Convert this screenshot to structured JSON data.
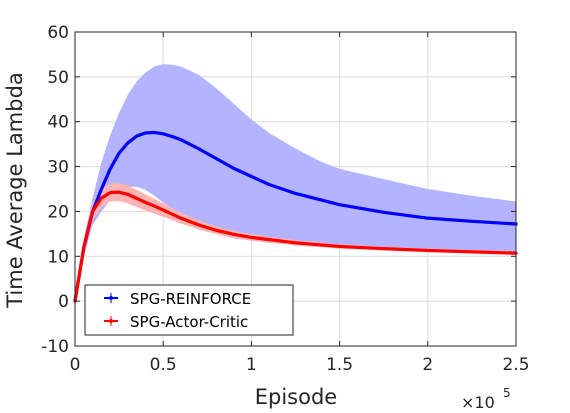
{
  "chart_data": {
    "type": "line",
    "xlabel": "Episode",
    "ylabel": "Time Average Lambda",
    "xlim": [
      0,
      250000
    ],
    "ylim": [
      -10,
      60
    ],
    "x_ticks": [
      0,
      50000,
      100000,
      150000,
      200000,
      250000
    ],
    "x_tick_labels": [
      "0",
      "0.5",
      "1",
      "1.5",
      "2",
      "2.5"
    ],
    "y_ticks": [
      -10,
      0,
      10,
      20,
      30,
      40,
      50,
      60
    ],
    "x_exponent": {
      "base": "×10",
      "power": "5"
    },
    "grid": true,
    "legend_position": "bottom-left",
    "series": [
      {
        "name": "SPG-REINFORCE",
        "color": "#0000ff",
        "band_color": "#b3b3ff",
        "x": [
          0,
          5000,
          10000,
          15000,
          20000,
          25000,
          30000,
          35000,
          40000,
          45000,
          50000,
          55000,
          60000,
          70000,
          80000,
          90000,
          100000,
          110000,
          125000,
          140000,
          150000,
          175000,
          200000,
          225000,
          250000
        ],
        "mean": [
          0,
          12,
          20,
          25,
          29.5,
          33,
          35.3,
          36.8,
          37.5,
          37.6,
          37.3,
          36.7,
          36,
          34,
          31.8,
          29.6,
          27.8,
          26,
          24,
          22.5,
          21.5,
          19.8,
          18.5,
          17.8,
          17.2
        ],
        "upper": [
          0,
          14,
          23,
          31,
          37,
          42,
          46,
          49,
          51,
          52.3,
          52.8,
          52.7,
          52.3,
          50.5,
          47.5,
          44,
          40.5,
          37.5,
          34,
          31,
          29.5,
          27.2,
          25,
          23.5,
          22.2
        ],
        "lower": [
          0,
          10,
          17,
          20,
          22.5,
          24.5,
          25.5,
          25.5,
          24.8,
          23.5,
          22,
          20.5,
          19,
          16.5,
          15,
          14,
          13.5,
          13,
          12.5,
          12,
          12,
          11.5,
          11.2,
          11,
          10.8
        ]
      },
      {
        "name": "SPG-Actor-Critic",
        "color": "#ff0000",
        "band_color": "#ffb3b3",
        "x": [
          0,
          5000,
          10000,
          15000,
          20000,
          25000,
          30000,
          35000,
          40000,
          45000,
          50000,
          60000,
          70000,
          80000,
          90000,
          100000,
          125000,
          150000,
          175000,
          200000,
          225000,
          250000
        ],
        "mean": [
          0,
          12,
          20,
          23,
          24.2,
          24.3,
          23.8,
          22.9,
          22,
          21.2,
          20.3,
          18.5,
          17,
          15.8,
          14.9,
          14.2,
          13,
          12.2,
          11.7,
          11.3,
          11,
          10.7
        ],
        "upper": [
          0,
          13,
          22,
          25.2,
          26.2,
          26.3,
          25.8,
          24.8,
          23.8,
          22.8,
          21.8,
          19.7,
          18,
          16.7,
          15.7,
          14.9,
          13.6,
          12.7,
          12.1,
          11.7,
          11.4,
          11.1
        ],
        "lower": [
          0,
          11,
          18,
          21,
          22.2,
          22.3,
          21.8,
          21,
          20.2,
          19.5,
          18.8,
          17.3,
          16,
          14.9,
          14.1,
          13.5,
          12.4,
          11.7,
          11.3,
          10.9,
          10.6,
          10.3
        ]
      }
    ]
  }
}
